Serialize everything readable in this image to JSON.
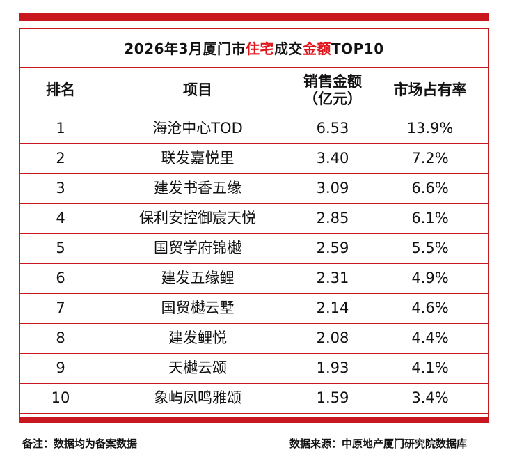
{
  "title": {
    "prefix": "2026年3月厦门市",
    "highlight1": "住宅",
    "middle": "成交",
    "highlight2": "金额",
    "suffix": "TOP10"
  },
  "colors": {
    "accent": "#c8171e",
    "highlight_text": "#e0161d"
  },
  "table": {
    "headers": {
      "rank": "排名",
      "project": "项目",
      "sales_line1": "销售金额",
      "sales_line2": "（亿元）",
      "share": "市场占有率"
    },
    "rows": [
      {
        "rank": "1",
        "project": "海沧中心TOD",
        "sales": "6.53",
        "share": "13.9%"
      },
      {
        "rank": "2",
        "project": "联发嘉悦里",
        "sales": "3.40",
        "share": "7.2%"
      },
      {
        "rank": "3",
        "project": "建发书香五缘",
        "sales": "3.09",
        "share": "6.6%"
      },
      {
        "rank": "4",
        "project": "保利安控御宸天悦",
        "sales": "2.85",
        "share": "6.1%"
      },
      {
        "rank": "5",
        "project": "国贸学府锦樾",
        "sales": "2.59",
        "share": "5.5%"
      },
      {
        "rank": "6",
        "project": "建发五缘鲤",
        "sales": "2.31",
        "share": "4.9%"
      },
      {
        "rank": "7",
        "project": "国贸樾云墅",
        "sales": "2.14",
        "share": "4.6%"
      },
      {
        "rank": "8",
        "project": "建发鲤悦",
        "sales": "2.08",
        "share": "4.4%"
      },
      {
        "rank": "9",
        "project": "天樾云颂",
        "sales": "1.93",
        "share": "4.1%"
      },
      {
        "rank": "10",
        "project": "象屿凤鸣雅颂",
        "sales": "1.59",
        "share": "3.4%"
      }
    ]
  },
  "footer": {
    "note": "备注：数据均为备案数据",
    "source": "数据来源：中原地产厦门研究院数据库"
  }
}
